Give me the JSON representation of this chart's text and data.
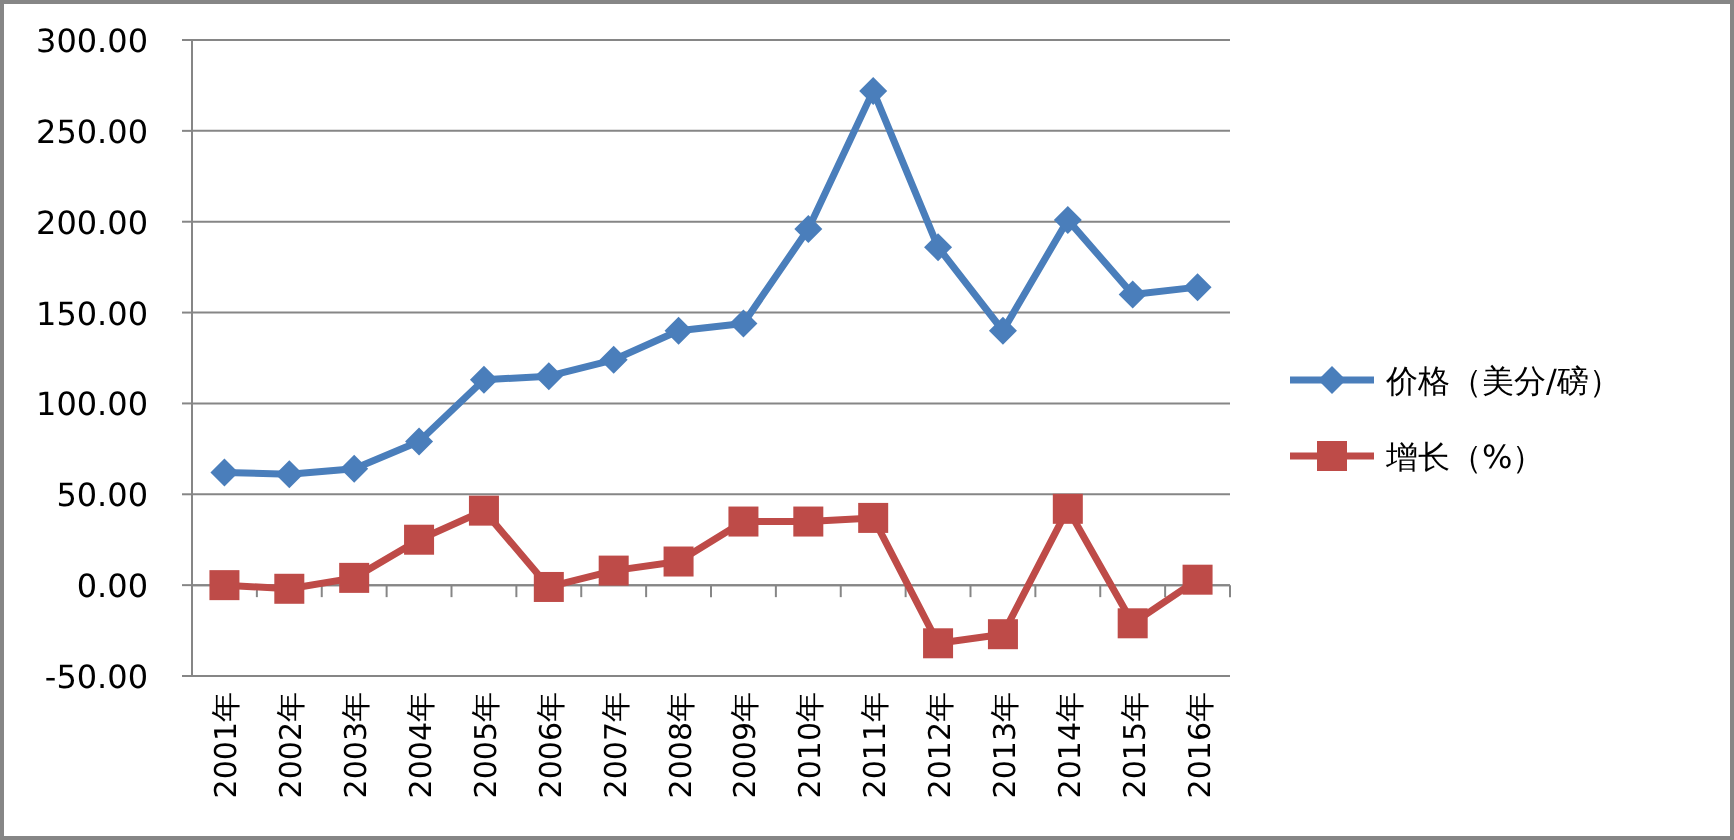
{
  "chart_data": {
    "type": "line",
    "categories": [
      "2001年",
      "2002年",
      "2003年",
      "2004年",
      "2005年",
      "2006年",
      "2007年",
      "2008年",
      "2009年",
      "2010年",
      "2011年",
      "2012年",
      "2013年",
      "2014年",
      "2015年",
      "2016年"
    ],
    "series": [
      {
        "name": "价格（美分/磅）",
        "color": "#4a7ebb",
        "marker": "diamond",
        "values": [
          62,
          61,
          64,
          79,
          113,
          115,
          124,
          140,
          144,
          196,
          272,
          186,
          140,
          201,
          160,
          164
        ]
      },
      {
        "name": "增长（%）",
        "color": "#be4b48",
        "marker": "square",
        "values": [
          0,
          -2,
          4,
          25,
          41,
          -1,
          8,
          13,
          35,
          35,
          37,
          -32,
          -27,
          42,
          -21,
          3
        ]
      }
    ],
    "ylim": [
      -50,
      300
    ],
    "yticks": [
      {
        "value": -50,
        "label": "-50.00"
      },
      {
        "value": 0,
        "label": "0.00"
      },
      {
        "value": 50,
        "label": "50.00"
      },
      {
        "value": 100,
        "label": "100.00"
      },
      {
        "value": 150,
        "label": "150.00"
      },
      {
        "value": 200,
        "label": "200.00"
      },
      {
        "value": 250,
        "label": "250.00"
      },
      {
        "value": 300,
        "label": "300.00"
      }
    ],
    "grid": "y",
    "legend": "right"
  }
}
